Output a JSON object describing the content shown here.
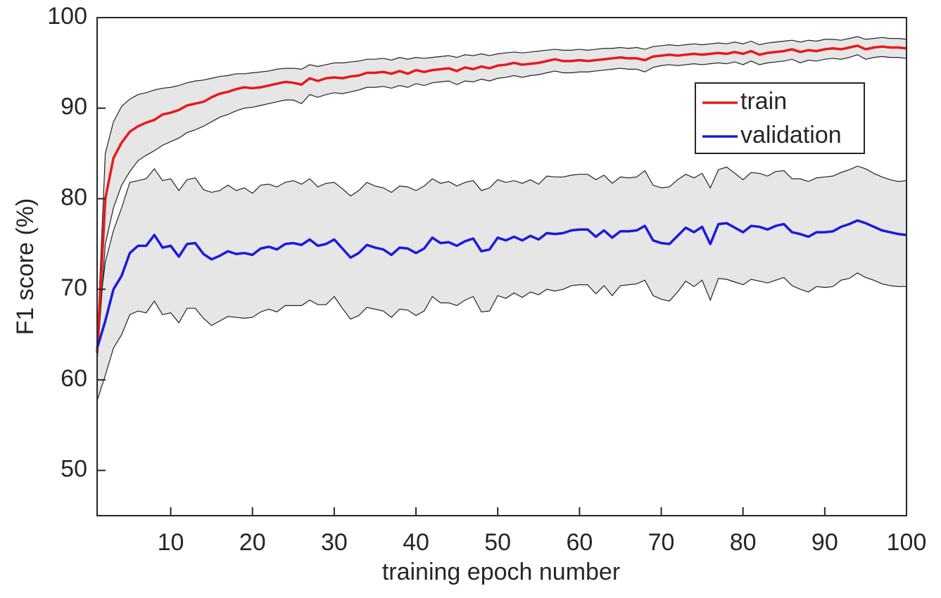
{
  "chart_data": {
    "type": "line",
    "xlabel": "training epoch number",
    "ylabel": "F1 score (%)",
    "x": [
      1,
      2,
      3,
      4,
      5,
      6,
      7,
      8,
      9,
      10,
      11,
      12,
      13,
      14,
      15,
      16,
      17,
      18,
      19,
      20,
      21,
      22,
      23,
      24,
      25,
      26,
      27,
      28,
      29,
      30,
      31,
      32,
      33,
      34,
      35,
      36,
      37,
      38,
      39,
      40,
      41,
      42,
      43,
      44,
      45,
      46,
      47,
      48,
      49,
      50,
      51,
      52,
      53,
      54,
      55,
      56,
      57,
      58,
      59,
      60,
      61,
      62,
      63,
      64,
      65,
      66,
      67,
      68,
      69,
      70,
      71,
      72,
      73,
      74,
      75,
      76,
      77,
      78,
      79,
      80,
      81,
      82,
      83,
      84,
      85,
      86,
      87,
      88,
      89,
      90,
      91,
      92,
      93,
      94,
      95,
      96,
      97,
      98,
      99,
      100
    ],
    "xlim": [
      1,
      100
    ],
    "xticks": [
      10,
      20,
      30,
      40,
      50,
      60,
      70,
      80,
      90,
      100
    ],
    "ylim": [
      45,
      100
    ],
    "yticks": [
      50,
      60,
      70,
      80,
      90,
      100
    ],
    "legend": "upper right",
    "band_color": "#e6e6e6",
    "series": [
      {
        "name": "train",
        "color": "#e8191b",
        "values": [
          63,
          80,
          84.5,
          86.2,
          87.4,
          88,
          88.4,
          88.7,
          89.3,
          89.5,
          89.8,
          90.3,
          90.5,
          90.7,
          91.2,
          91.6,
          91.8,
          92.1,
          92.3,
          92.2,
          92.3,
          92.5,
          92.7,
          92.9,
          92.8,
          92.6,
          93.3,
          93.0,
          93.3,
          93.4,
          93.3,
          93.5,
          93.6,
          93.9,
          93.9,
          94.0,
          93.8,
          94.1,
          93.8,
          94.2,
          94.0,
          94.2,
          94.3,
          94.4,
          94.1,
          94.5,
          94.3,
          94.6,
          94.4,
          94.7,
          94.8,
          95.0,
          94.8,
          94.9,
          95.0,
          95.2,
          95.4,
          95.2,
          95.2,
          95.3,
          95.2,
          95.3,
          95.4,
          95.5,
          95.6,
          95.5,
          95.5,
          95.3,
          95.7,
          95.8,
          95.9,
          95.8,
          95.9,
          96.0,
          95.9,
          96.0,
          96.1,
          96.0,
          96.2,
          96.0,
          96.3,
          95.9,
          96.1,
          96.2,
          96.3,
          96.5,
          96.2,
          96.4,
          96.3,
          96.5,
          96.6,
          96.5,
          96.7,
          96.9,
          96.5,
          96.7,
          96.8,
          96.7,
          96.7,
          96.6
        ],
        "upper": [
          64,
          85,
          88.5,
          90.2,
          91,
          91.5,
          91.7,
          92,
          92.2,
          92.3,
          92.5,
          92.8,
          93,
          93.1,
          93.3,
          93.5,
          93.6,
          93.8,
          93.8,
          93.9,
          94.0,
          94.1,
          94.3,
          94.4,
          94.4,
          94.3,
          94.8,
          94.6,
          94.8,
          95.0,
          95.0,
          95.1,
          95.2,
          95.4,
          95.4,
          95.5,
          95.3,
          95.6,
          95.4,
          95.6,
          95.5,
          95.6,
          95.7,
          95.8,
          95.6,
          95.9,
          95.8,
          96.0,
          95.8,
          96.0,
          96.1,
          96.2,
          96.1,
          96.2,
          96.3,
          96.4,
          96.5,
          96.4,
          96.4,
          96.5,
          96.4,
          96.5,
          96.6,
          96.6,
          96.7,
          96.6,
          96.7,
          96.5,
          96.8,
          96.9,
          97.0,
          96.9,
          97.0,
          97.1,
          97.0,
          97.1,
          97.2,
          97.1,
          97.3,
          97.1,
          97.4,
          97.0,
          97.2,
          97.3,
          97.4,
          97.5,
          97.3,
          97.5,
          97.4,
          97.6,
          97.6,
          97.5,
          97.7,
          97.9,
          97.6,
          97.7,
          97.8,
          97.7,
          97.7,
          97.6
        ],
        "lower": [
          62,
          75,
          79,
          81.5,
          83,
          84.2,
          84.8,
          85.3,
          85.9,
          86.3,
          86.7,
          87.3,
          87.6,
          88.0,
          88.5,
          89.0,
          89.3,
          89.7,
          90.0,
          90.1,
          90.3,
          90.5,
          90.7,
          90.9,
          90.9,
          90.5,
          91.5,
          91.2,
          91.5,
          91.7,
          91.6,
          91.8,
          92.0,
          92.3,
          92.3,
          92.4,
          92.2,
          92.5,
          92.3,
          92.7,
          92.5,
          92.8,
          92.9,
          93.0,
          92.6,
          93.0,
          92.9,
          93.2,
          93.0,
          93.3,
          93.4,
          93.6,
          93.4,
          93.6,
          93.7,
          93.9,
          94.1,
          93.9,
          93.9,
          94.0,
          94.0,
          94.1,
          94.2,
          94.3,
          94.4,
          94.3,
          94.3,
          94.0,
          94.5,
          94.7,
          94.8,
          94.7,
          94.8,
          94.9,
          94.8,
          94.9,
          95.0,
          94.9,
          95.1,
          94.8,
          95.2,
          94.8,
          95.0,
          95.1,
          95.2,
          95.4,
          95.0,
          95.3,
          95.2,
          95.4,
          95.5,
          95.4,
          95.6,
          95.9,
          95.4,
          95.6,
          95.7,
          95.6,
          95.6,
          95.5
        ]
      },
      {
        "name": "validation",
        "color": "#1a1adc",
        "values": [
          63.5,
          66.5,
          70,
          71.5,
          74,
          74.8,
          74.8,
          76,
          74.6,
          74.8,
          73.6,
          75.0,
          75.1,
          73.9,
          73.3,
          73.7,
          74.2,
          73.9,
          74.0,
          73.8,
          74.5,
          74.7,
          74.4,
          75.0,
          75.1,
          74.9,
          75.5,
          74.8,
          75.0,
          75.5,
          74.5,
          73.5,
          74.0,
          74.9,
          74.6,
          74.4,
          73.8,
          74.6,
          74.5,
          74.0,
          74.5,
          75.7,
          75.1,
          75.2,
          74.8,
          75.3,
          75.6,
          74.2,
          74.4,
          75.7,
          75.4,
          75.8,
          75.4,
          75.9,
          75.5,
          76.2,
          76.1,
          76.2,
          76.5,
          76.6,
          76.6,
          75.8,
          76.5,
          75.7,
          76.4,
          76.4,
          76.5,
          77.0,
          75.4,
          75.1,
          75.0,
          75.9,
          76.8,
          76.3,
          76.9,
          75.0,
          77.2,
          77.3,
          76.8,
          76.3,
          77.0,
          76.9,
          76.6,
          77.0,
          77.2,
          76.3,
          76.1,
          75.8,
          76.3,
          76.3,
          76.4,
          76.9,
          77.2,
          77.6,
          77.3,
          76.9,
          76.5,
          76.3,
          76.1,
          76.0
        ],
        "upper": [
          65.5,
          73,
          76.5,
          79,
          81.8,
          82,
          82.2,
          83.3,
          82,
          82.2,
          80.9,
          82.1,
          82.3,
          81.0,
          80.7,
          80.9,
          81.5,
          80.9,
          81.2,
          80.6,
          81.5,
          81.6,
          81.3,
          81.8,
          82.0,
          81.6,
          82.2,
          81.3,
          81.7,
          81.8,
          81.1,
          80.3,
          80.9,
          81.8,
          81.4,
          81.2,
          80.7,
          81.4,
          81.3,
          80.9,
          81.4,
          82.2,
          81.7,
          81.9,
          81.4,
          81.8,
          82.0,
          80.9,
          81.2,
          82.1,
          81.8,
          82.0,
          81.7,
          82.1,
          81.6,
          82.5,
          82.4,
          82.4,
          82.6,
          82.7,
          82.7,
          82.1,
          82.6,
          81.7,
          82.4,
          82.3,
          82.4,
          83.1,
          81.5,
          81.2,
          81.3,
          82.1,
          82.7,
          82.3,
          82.8,
          81.2,
          83.2,
          83.5,
          82.8,
          82.1,
          82.9,
          82.8,
          82.5,
          83.0,
          83.1,
          82.2,
          82.2,
          81.9,
          82.3,
          82.4,
          82.5,
          82.9,
          83.2,
          83.6,
          83.3,
          82.8,
          82.4,
          82.1,
          81.9,
          82.0
        ],
        "lower": [
          57.7,
          60.5,
          63.5,
          65,
          67.2,
          67.6,
          67.4,
          68.7,
          67.2,
          67.4,
          66.3,
          67.9,
          67.9,
          66.8,
          66.0,
          66.5,
          67.0,
          66.9,
          66.8,
          66.9,
          67.5,
          67.8,
          67.5,
          68.2,
          68.2,
          68.2,
          68.8,
          68.3,
          68.3,
          69.2,
          67.9,
          66.7,
          67.1,
          68.0,
          67.8,
          67.6,
          66.9,
          67.8,
          67.7,
          67.1,
          67.6,
          69.2,
          68.5,
          68.5,
          68.2,
          68.8,
          69.2,
          67.5,
          67.6,
          69.3,
          69.0,
          69.6,
          69.1,
          69.7,
          69.4,
          70.0,
          69.8,
          70.0,
          70.4,
          70.5,
          70.5,
          69.5,
          70.4,
          69.3,
          70.4,
          70.5,
          70.6,
          71.0,
          69.3,
          68.9,
          68.7,
          69.7,
          70.9,
          70.3,
          71.0,
          68.8,
          71.2,
          71.1,
          70.8,
          70.5,
          71.1,
          70.9,
          70.7,
          71.0,
          71.3,
          70.4,
          70.0,
          69.7,
          70.3,
          70.2,
          70.3,
          71.0,
          71.2,
          71.8,
          71.3,
          71.0,
          70.6,
          70.4,
          70.3,
          70.3
        ]
      }
    ]
  }
}
